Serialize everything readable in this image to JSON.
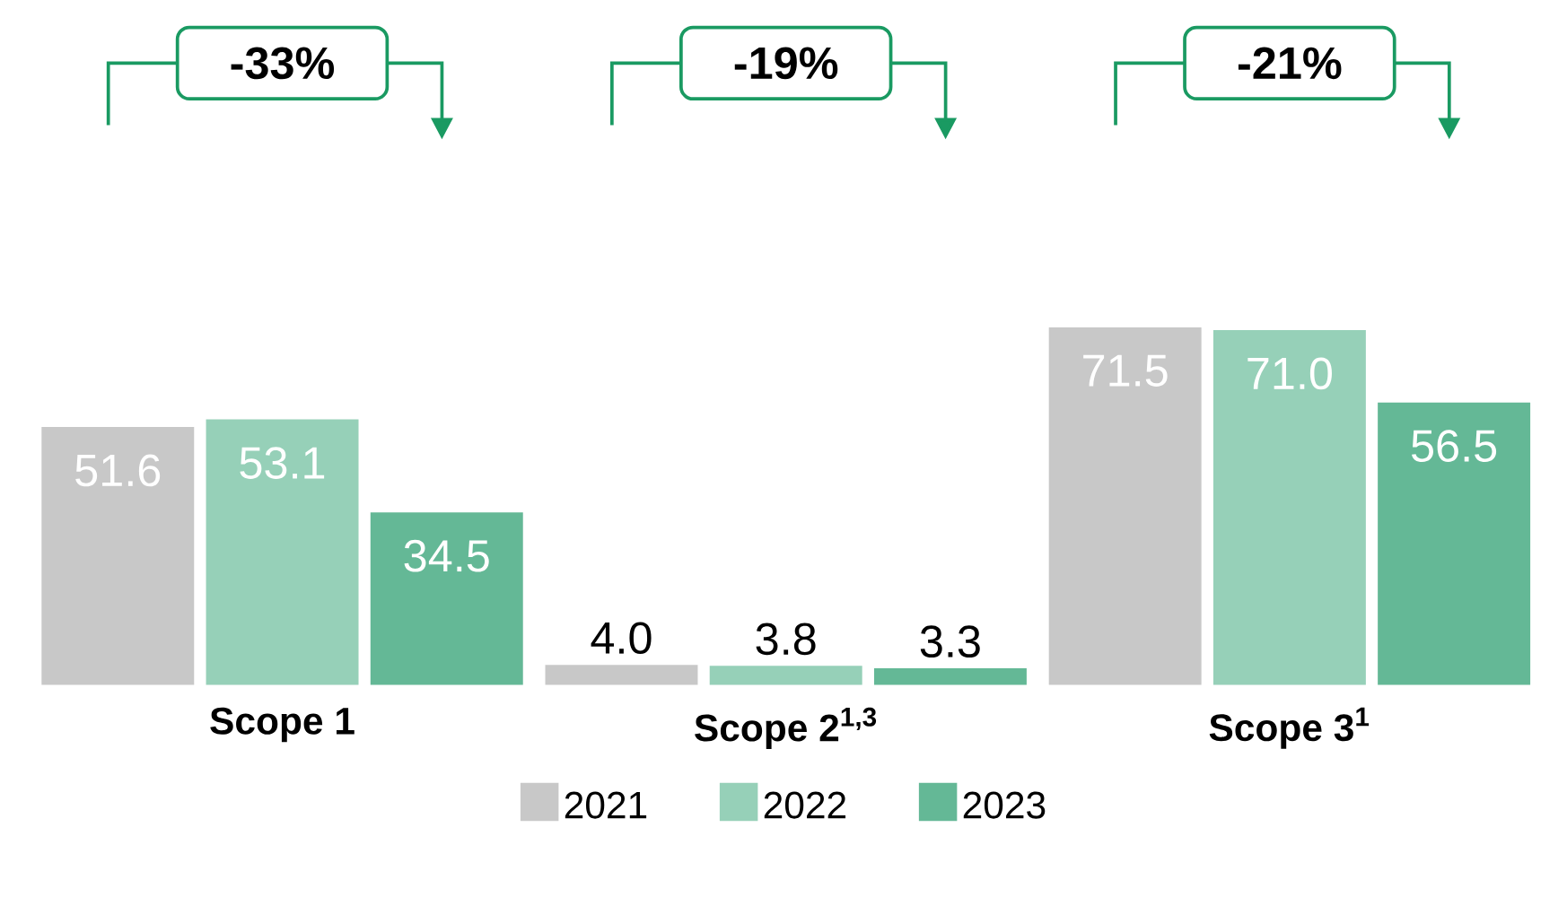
{
  "chart_data": {
    "type": "bar",
    "categories": [
      "Scope 1",
      "Scope 2$^{1,3}$",
      "Scope 3$^{1}$"
    ],
    "series": [
      {
        "name": "2021",
        "color": "#c8c8c8",
        "values": [
          51.6,
          4.0,
          71.5
        ],
        "value_labels": [
          "51.6",
          "4.0",
          "71.5"
        ]
      },
      {
        "name": "2022",
        "color": "#96d0b8",
        "values": [
          53.1,
          3.8,
          71.0
        ],
        "value_labels": [
          "53.1",
          "3.8",
          "71.0"
        ]
      },
      {
        "name": "2023",
        "color": "#64b896",
        "values": [
          34.5,
          3.3,
          56.5
        ],
        "value_labels": [
          "34.5",
          "3.3",
          "56.5"
        ]
      }
    ],
    "annotations": [
      "-33%",
      "-19%",
      "-21%"
    ],
    "legend": "bottom"
  }
}
